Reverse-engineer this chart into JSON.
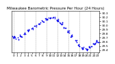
{
  "title": "Milwaukee Barometric Pressure Per Hour (24 Hours)",
  "x_values": [
    0,
    1,
    2,
    3,
    4,
    5,
    6,
    7,
    8,
    9,
    10,
    11,
    12,
    13,
    14,
    15,
    16,
    17,
    18,
    19,
    20,
    21,
    22,
    23
  ],
  "y_values": [
    29.72,
    29.68,
    29.75,
    29.8,
    29.88,
    29.92,
    29.98,
    30.05,
    30.1,
    30.15,
    30.18,
    30.18,
    30.12,
    30.05,
    29.95,
    29.85,
    29.75,
    29.62,
    29.52,
    29.45,
    29.42,
    29.48,
    29.55,
    29.62
  ],
  "dot_color": "#0000ee",
  "background_color": "#ffffff",
  "grid_color": "#aaaaaa",
  "title_color": "#000000",
  "ylim": [
    29.35,
    30.35
  ],
  "xlim": [
    -0.5,
    23.5
  ],
  "ytick_values": [
    29.4,
    29.5,
    29.6,
    29.7,
    29.8,
    29.9,
    30.0,
    30.1,
    30.2,
    30.3
  ],
  "xtick_labels": [
    "0",
    "1",
    "2",
    "3",
    "4",
    "5",
    "6",
    "7",
    "8",
    "9",
    "10",
    "11",
    "12",
    "13",
    "14",
    "15",
    "16",
    "17",
    "18",
    "19",
    "20",
    "21",
    "22",
    "23"
  ],
  "xtick_positions": [
    0,
    1,
    2,
    3,
    4,
    5,
    6,
    7,
    8,
    9,
    10,
    11,
    12,
    13,
    14,
    15,
    16,
    17,
    18,
    19,
    20,
    21,
    22,
    23
  ],
  "vgrid_positions": [
    0,
    3,
    6,
    9,
    12,
    15,
    18,
    21
  ],
  "title_fontsize": 4.0,
  "tick_fontsize": 3.2,
  "dot_size": 1.5,
  "grid_style": "--",
  "grid_linewidth": 0.4
}
